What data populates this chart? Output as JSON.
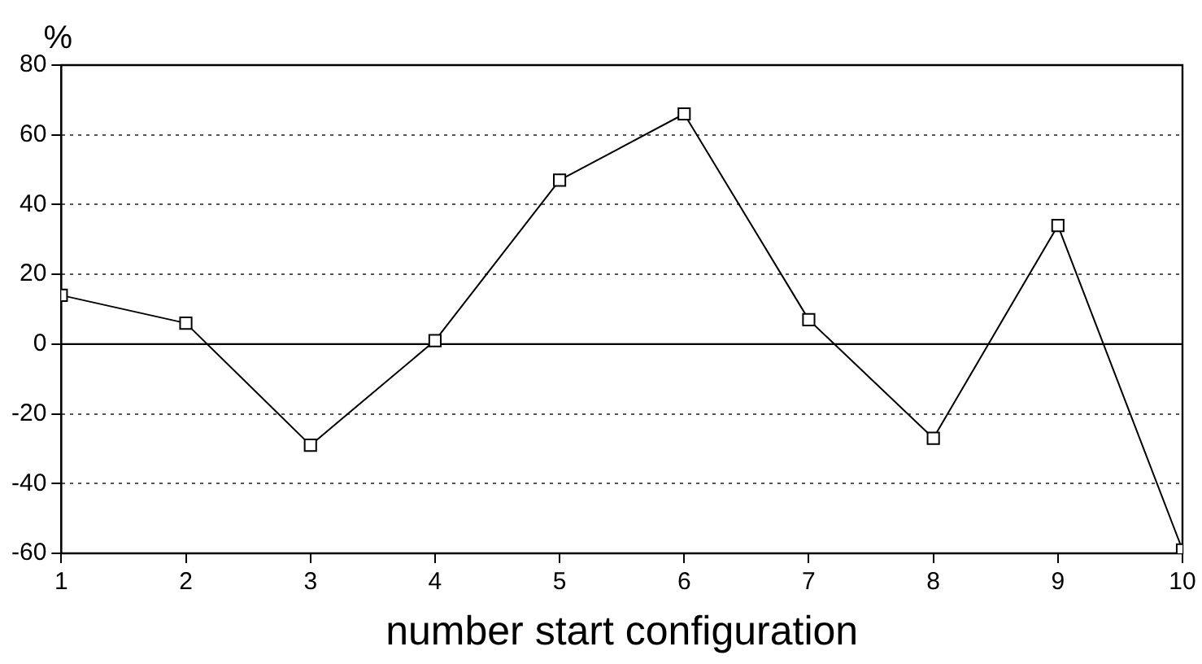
{
  "chart_data": {
    "type": "line",
    "xlabel": "number start configuration",
    "ylabel": "%",
    "x": [
      1,
      2,
      3,
      4,
      5,
      6,
      7,
      8,
      9,
      10
    ],
    "series": [
      {
        "color": "#000000",
        "values": [
          14,
          6,
          -29,
          1,
          47,
          66,
          7,
          -27,
          34,
          -59
        ]
      }
    ],
    "xlim": [
      1,
      10
    ],
    "xticks": [
      1,
      2,
      3,
      4,
      5,
      6,
      7,
      8,
      9,
      10
    ],
    "ylim": [
      -60,
      80
    ],
    "yticks": [
      -60,
      -40,
      -20,
      0,
      20,
      40,
      60,
      80
    ],
    "ref_lines": [
      {
        "axis": "y",
        "value": 0,
        "color": "#000000",
        "line_style": "solid"
      }
    ],
    "grid": "y",
    "marker": "square",
    "line_style": "solid",
    "legend": false
  }
}
